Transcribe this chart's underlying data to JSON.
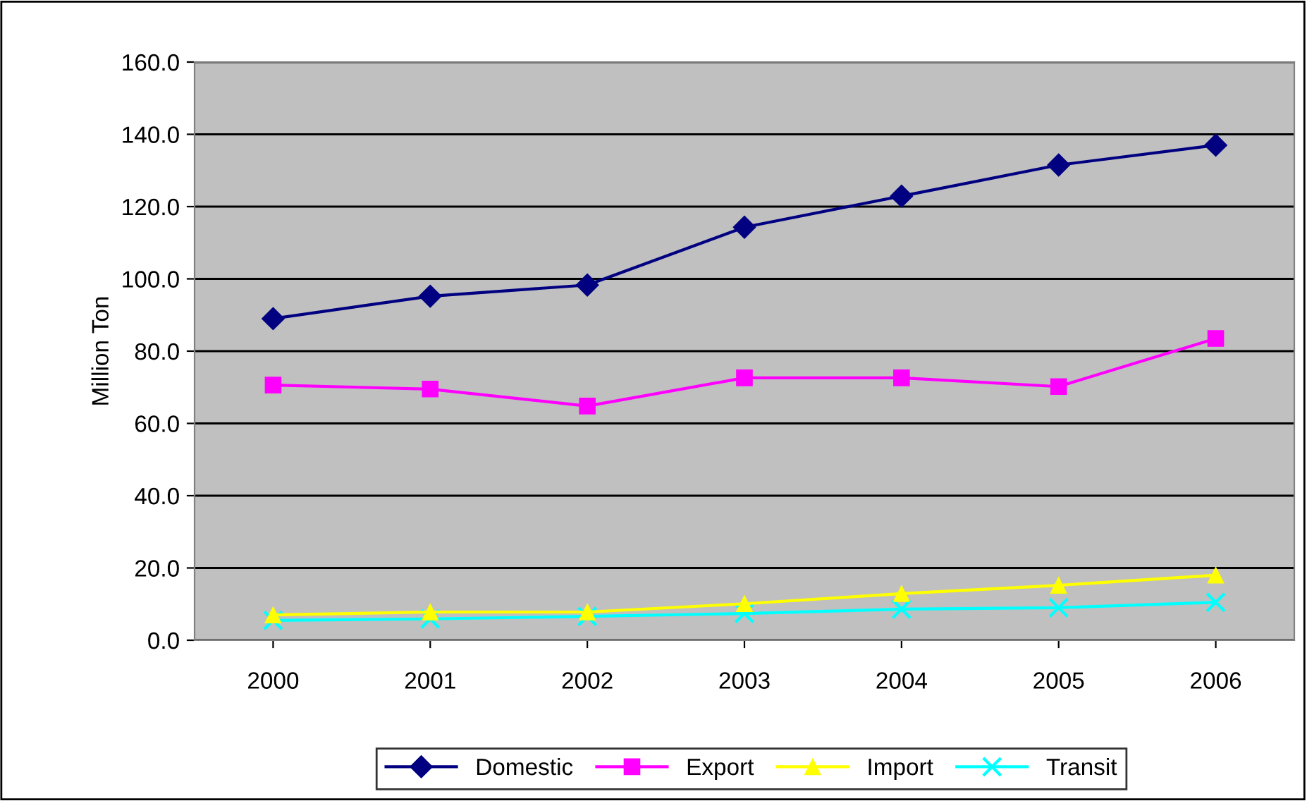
{
  "chart_data": {
    "type": "line",
    "ylabel": "Million Ton",
    "categories": [
      "2000",
      "2001",
      "2002",
      "2003",
      "2004",
      "2005",
      "2006"
    ],
    "series": [
      {
        "name": "Domestic",
        "color": "#000080",
        "marker": "diamond",
        "values": [
          89.0,
          95.2,
          98.3,
          114.3,
          122.9,
          131.5,
          137.0
        ]
      },
      {
        "name": "Export",
        "color": "#ff00ff",
        "marker": "square",
        "values": [
          70.6,
          69.5,
          64.8,
          72.6,
          72.6,
          70.2,
          83.5
        ]
      },
      {
        "name": "Import",
        "color": "#ffff00",
        "marker": "triangle",
        "values": [
          7.0,
          7.8,
          7.8,
          10.1,
          12.9,
          15.2,
          18.0
        ]
      },
      {
        "name": "Transit",
        "color": "#00ffff",
        "marker": "cross",
        "values": [
          5.5,
          5.9,
          6.6,
          7.4,
          8.6,
          9.0,
          10.5
        ]
      }
    ],
    "ylim": [
      0,
      160
    ],
    "yticks": [
      {
        "value": 0,
        "label": "0.0"
      },
      {
        "value": 20,
        "label": "20.0"
      },
      {
        "value": 40,
        "label": "40.0"
      },
      {
        "value": 60,
        "label": "60.0"
      },
      {
        "value": 80,
        "label": "80.0"
      },
      {
        "value": 100,
        "label": "100.0"
      },
      {
        "value": 120,
        "label": "120.0"
      },
      {
        "value": 140,
        "label": "140.0"
      },
      {
        "value": 160,
        "label": "160.0"
      }
    ],
    "grid": "y",
    "legend": "bottom",
    "line_style": "solid"
  }
}
